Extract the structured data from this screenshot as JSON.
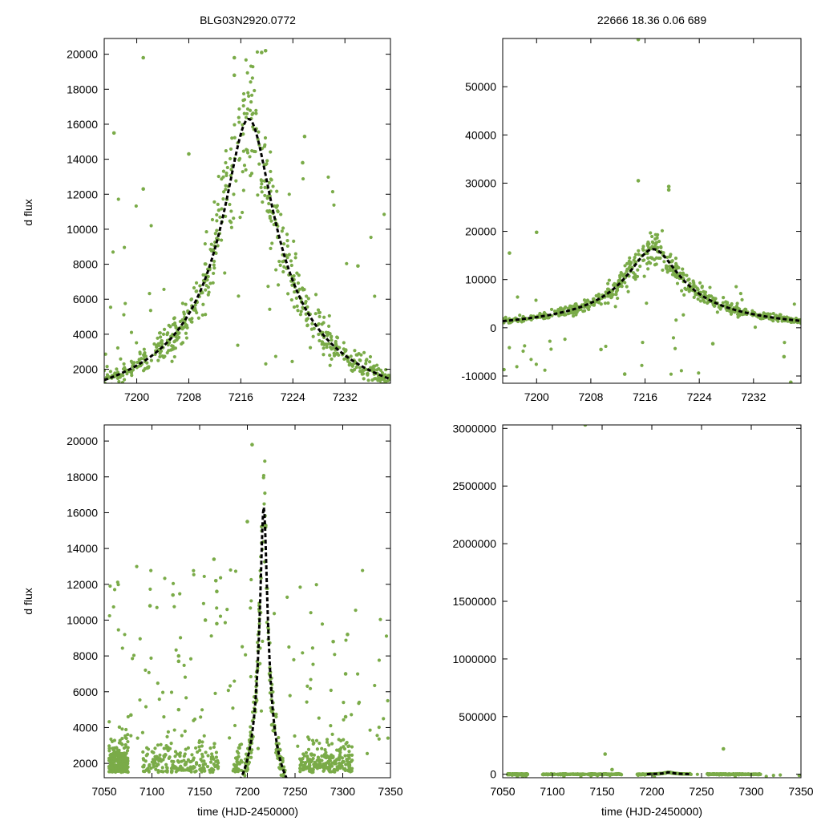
{
  "chart_data": [
    {
      "id": "top-left",
      "type": "scatter",
      "title": "BLG03N2920.0772",
      "xlabel": "",
      "ylabel": "d flux",
      "xlim": [
        7195,
        7239
      ],
      "ylim": [
        1200,
        20900
      ],
      "xticks": [
        7200,
        7208,
        7216,
        7224,
        7232
      ],
      "yticks": [
        2000,
        4000,
        6000,
        8000,
        10000,
        12000,
        14000,
        16000,
        18000,
        20000
      ],
      "series": [
        {
          "name": "fit",
          "style": "dashed-line",
          "t0": 7217.2,
          "peak": 16300,
          "tE": 7.5,
          "offset": -1600
        },
        {
          "name": "observations",
          "style": "points",
          "seed": 11,
          "n": 650,
          "scatter_frac": 0.13,
          "outliers": 40,
          "outlier_points": [
            [
              7196.5,
              15500
            ],
            [
              7201,
              19800
            ],
            [
              7215,
              19800
            ],
            [
              7215,
              18800
            ],
            [
              7219.2,
              20100
            ],
            [
              7219.8,
              20200
            ],
            [
              7225.8,
              15300
            ],
            [
              7225.5,
              13800
            ],
            [
              7208,
              14300
            ],
            [
              7201,
              12300
            ],
            [
              7234,
              7900
            ]
          ]
        }
      ]
    },
    {
      "id": "top-right",
      "type": "scatter",
      "title": "22666  18.36  0.06  689",
      "xlabel": "",
      "ylabel": "",
      "xlim": [
        7195,
        7239
      ],
      "ylim": [
        -11500,
        60000
      ],
      "xticks": [
        7200,
        7208,
        7216,
        7224,
        7232
      ],
      "yticks": [
        -10000,
        0,
        10000,
        20000,
        30000,
        40000,
        50000
      ],
      "series": [
        {
          "name": "fit",
          "style": "dashed-line",
          "t0": 7217.2,
          "peak": 16300,
          "tE": 7.5,
          "offset": -1600
        },
        {
          "name": "observations",
          "style": "points",
          "seed": 11,
          "n": 650,
          "scatter_frac": 0.13,
          "outliers": 40,
          "outlier_points": [
            [
              7215,
              59800
            ],
            [
              7215,
              30500
            ],
            [
              7219.5,
              29300
            ],
            [
              7219.5,
              28600
            ],
            [
              7209.5,
              -4500
            ],
            [
              7213,
              -9600
            ],
            [
              7226,
              -3300
            ],
            [
              7236.5,
              -6000
            ],
            [
              7237.5,
              -11300
            ],
            [
              7200,
              19800
            ],
            [
              7196,
              15500
            ]
          ]
        }
      ]
    },
    {
      "id": "bottom-left",
      "type": "scatter",
      "title": "",
      "xlabel": "time (HJD-2450000)",
      "ylabel": "d flux",
      "xlim": [
        7050,
        7350
      ],
      "ylim": [
        1200,
        20900
      ],
      "xticks": [
        7050,
        7100,
        7150,
        7200,
        7250,
        7300,
        7350
      ],
      "yticks": [
        2000,
        4000,
        6000,
        8000,
        10000,
        12000,
        14000,
        16000,
        18000,
        20000
      ],
      "series": [
        {
          "name": "fit",
          "style": "dashed-line",
          "t0": 7217.2,
          "peak": 16300,
          "tE": 7.5,
          "offset": -1600
        },
        {
          "name": "observations",
          "style": "points",
          "seed": 23,
          "n": 900,
          "scatter_frac": 0.13,
          "outliers": 120,
          "outlier_points": [
            [
              7078,
              4700
            ],
            [
              7098,
              10800
            ],
            [
              7122,
              11400
            ],
            [
              7128,
              8000
            ],
            [
              7128,
              7700
            ],
            [
              7128,
              5000
            ],
            [
              7156,
              10000
            ],
            [
              7165,
              13400
            ],
            [
              7167,
              12200
            ],
            [
              7168,
              11600
            ],
            [
              7168,
              9800
            ],
            [
              7200,
              15500
            ],
            [
              7205,
              19800
            ],
            [
              7290,
              8800
            ],
            [
              7305,
              9200
            ],
            [
              7303,
              7000
            ],
            [
              7303,
              4600
            ]
          ]
        }
      ]
    },
    {
      "id": "bottom-right",
      "type": "scatter",
      "title": "",
      "xlabel": "time (HJD-2450000)",
      "ylabel": "",
      "xlim": [
        7050,
        7350
      ],
      "ylim": [
        -30000,
        3030000
      ],
      "xticks": [
        7050,
        7100,
        7150,
        7200,
        7250,
        7300,
        7350
      ],
      "yticks": [
        0,
        500000,
        1000000,
        1500000,
        2000000,
        2500000,
        3000000
      ],
      "series": [
        {
          "name": "fit",
          "style": "dashed-line",
          "t0": 7217.2,
          "peak": 16300,
          "tE": 7.5,
          "offset": -1600,
          "range": [
            7195,
            7238
          ]
        },
        {
          "name": "observations",
          "style": "points",
          "seed": 37,
          "n": 900,
          "scatter_frac": 0.13,
          "outliers": 20,
          "outlier_points": [
            [
              7133,
              3030000
            ],
            [
              7272,
              220000
            ],
            [
              7153,
              175000
            ],
            [
              7165,
              -45000
            ],
            [
              7160,
              40000
            ]
          ]
        }
      ]
    }
  ]
}
